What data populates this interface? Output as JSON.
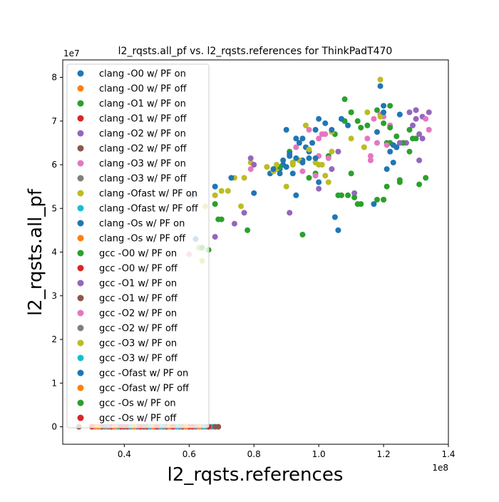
{
  "chart_data": {
    "type": "scatter",
    "title": "l2_rqsts.all_pf vs. l2_rqsts.references for ThinkPadT470",
    "xlabel": "l2_rqsts.references",
    "ylabel": "l2_rqsts.all_pf",
    "x_offset_label": "1e8",
    "y_offset_label": "1e7",
    "x_scale": 100000000,
    "y_scale": 10000000,
    "xlim": [
      0.21,
      1.4
    ],
    "ylim": [
      -0.4,
      8.4
    ],
    "xticks": [
      0.4,
      0.6,
      0.8,
      1.0,
      1.2,
      1.4
    ],
    "xtick_labels": [
      "0.4",
      "0.6",
      "0.8",
      "1.0",
      "1.2",
      "1.4"
    ],
    "yticks": [
      0,
      1,
      2,
      3,
      4,
      5,
      6,
      7,
      8
    ],
    "ytick_labels": [
      "0",
      "1",
      "2",
      "3",
      "4",
      "5",
      "6",
      "7",
      "8"
    ],
    "grid": false,
    "legend_position": "upper-left",
    "series": [
      {
        "name": "clang -O0 w/ PF on",
        "color": "#1f77b4",
        "points": [
          [
            0.9,
            5.95
          ],
          [
            0.92,
            6.05
          ],
          [
            0.86,
            5.85
          ],
          [
            0.88,
            5.9
          ],
          [
            0.95,
            6.1
          ],
          [
            0.93,
            6.6
          ],
          [
            0.9,
            6.8
          ],
          [
            0.97,
            6.3
          ],
          [
            0.99,
            6.8
          ],
          [
            1.0,
            7.05
          ],
          [
            0.85,
            5.8
          ],
          [
            0.91,
            6.2
          ],
          [
            0.94,
            6.5
          ],
          [
            0.89,
            6.0
          ],
          [
            0.87,
            5.95
          ],
          [
            0.96,
            6.4
          ]
        ]
      },
      {
        "name": "clang -O0 w/ PF off",
        "color": "#ff7f0e",
        "points": [
          [
            0.33,
            0.0
          ],
          [
            0.36,
            0.0
          ],
          [
            0.4,
            0.0
          ],
          [
            0.45,
            0.0
          ],
          [
            0.5,
            0.0
          ],
          [
            0.55,
            0.0
          ],
          [
            0.6,
            0.0
          ],
          [
            0.65,
            0.0
          ]
        ]
      },
      {
        "name": "clang -O1 w/ PF on",
        "color": "#2ca02c",
        "points": [
          [
            1.05,
            6.7
          ],
          [
            1.08,
            7.0
          ],
          [
            1.1,
            7.2
          ],
          [
            1.15,
            6.9
          ],
          [
            1.18,
            7.25
          ],
          [
            1.12,
            5.1
          ],
          [
            1.2,
            5.2
          ],
          [
            1.22,
            6.5
          ],
          [
            1.25,
            5.6
          ],
          [
            1.28,
            6.8
          ],
          [
            0.95,
            4.4
          ],
          [
            1.06,
            5.3
          ]
        ]
      },
      {
        "name": "clang -O1 w/ PF off",
        "color": "#d62728",
        "points": [
          [
            0.32,
            0.0
          ],
          [
            0.38,
            0.0
          ],
          [
            0.44,
            0.0
          ],
          [
            0.49,
            0.0
          ],
          [
            0.53,
            0.0
          ],
          [
            0.58,
            0.0
          ],
          [
            0.62,
            0.0
          ]
        ]
      },
      {
        "name": "clang -O2 w/ PF on",
        "color": "#9467bd",
        "points": [
          [
            1.25,
            7.15
          ],
          [
            1.28,
            7.2
          ],
          [
            1.3,
            7.25
          ],
          [
            1.32,
            7.1
          ],
          [
            1.29,
            6.9
          ],
          [
            1.31,
            6.1
          ],
          [
            1.27,
            6.5
          ],
          [
            1.34,
            7.2
          ]
        ]
      },
      {
        "name": "clang -O2 w/ PF off",
        "color": "#8c564b",
        "points": [
          [
            0.26,
            0.0
          ],
          [
            0.35,
            0.0
          ],
          [
            0.47,
            0.0
          ],
          [
            0.57,
            0.0
          ],
          [
            0.66,
            0.0
          ],
          [
            0.69,
            0.0
          ]
        ]
      },
      {
        "name": "clang -O3 w/ PF on",
        "color": "#e377c2",
        "points": [
          [
            1.15,
            6.6
          ],
          [
            1.18,
            6.5
          ],
          [
            1.2,
            7.1
          ],
          [
            1.22,
            6.9
          ],
          [
            1.17,
            7.05
          ],
          [
            1.16,
            6.2
          ],
          [
            1.14,
            6.4
          ],
          [
            1.33,
            7.05
          ],
          [
            1.34,
            6.8
          ]
        ]
      },
      {
        "name": "clang -O3 w/ PF off",
        "color": "#7f7f7f",
        "points": [
          [
            0.34,
            0.0
          ],
          [
            0.42,
            0.0
          ],
          [
            0.51,
            0.0
          ],
          [
            0.59,
            0.0
          ],
          [
            0.64,
            0.0
          ]
        ]
      },
      {
        "name": "clang -Ofast w/ PF on",
        "color": "#bcbd22",
        "points": [
          [
            0.68,
            5.3
          ],
          [
            0.7,
            5.4
          ],
          [
            0.72,
            5.4
          ],
          [
            0.74,
            5.7
          ],
          [
            0.77,
            5.7
          ],
          [
            0.79,
            6.05
          ],
          [
            0.84,
            5.95
          ],
          [
            0.87,
            5.9
          ],
          [
            0.92,
            6.05
          ],
          [
            0.96,
            6.9
          ],
          [
            1.0,
            6.0
          ],
          [
            1.04,
            6.75
          ],
          [
            1.1,
            6.6
          ],
          [
            1.14,
            6.4
          ],
          [
            1.19,
            7.95
          ],
          [
            0.65,
            5.05
          ],
          [
            0.63,
            4.1
          ],
          [
            0.64,
            3.8
          ]
        ]
      },
      {
        "name": "clang -Ofast w/ PF off",
        "color": "#17becf",
        "points": [
          [
            0.37,
            0.0
          ],
          [
            0.43,
            0.0
          ],
          [
            0.48,
            0.0
          ],
          [
            0.54,
            0.0
          ],
          [
            0.61,
            0.0
          ],
          [
            0.67,
            0.0
          ]
        ]
      },
      {
        "name": "clang -Os w/ PF on",
        "color": "#1f77b4",
        "points": [
          [
            1.05,
            4.8
          ],
          [
            1.06,
            4.5
          ],
          [
            1.17,
            5.1
          ],
          [
            1.19,
            7.8
          ],
          [
            1.2,
            7.35
          ],
          [
            1.21,
            5.9
          ],
          [
            1.22,
            6.3
          ],
          [
            1.23,
            6.05
          ],
          [
            1.25,
            7.15
          ],
          [
            0.8,
            5.35
          ],
          [
            0.73,
            5.7
          ],
          [
            0.68,
            5.5
          ],
          [
            0.61,
            5.3
          ],
          [
            0.62,
            4.3
          ],
          [
            0.93,
            5.3
          ],
          [
            1.0,
            5.6
          ],
          [
            0.89,
            6.1
          ],
          [
            0.92,
            5.8
          ]
        ]
      },
      {
        "name": "clang -Os w/ PF off",
        "color": "#ff7f0e",
        "points": [
          [
            0.31,
            0.0
          ],
          [
            0.39,
            0.0
          ],
          [
            0.46,
            0.0
          ],
          [
            0.52,
            0.0
          ],
          [
            0.56,
            0.0
          ],
          [
            0.63,
            0.0
          ]
        ]
      },
      {
        "name": "gcc -O0 w/ PF on",
        "color": "#2ca02c",
        "points": [
          [
            0.68,
            5.1
          ],
          [
            0.69,
            4.75
          ],
          [
            0.7,
            4.75
          ],
          [
            0.78,
            4.5
          ],
          [
            0.88,
            5.95
          ],
          [
            0.91,
            6.3
          ],
          [
            0.97,
            5.7
          ],
          [
            0.99,
            5.8
          ],
          [
            1.03,
            6.2
          ],
          [
            1.08,
            7.5
          ],
          [
            1.1,
            5.8
          ],
          [
            1.12,
            7.0
          ],
          [
            1.18,
            5.2
          ],
          [
            1.21,
            6.5
          ],
          [
            1.26,
            6.5
          ],
          [
            1.3,
            6.6
          ],
          [
            1.33,
            5.7
          ],
          [
            1.2,
            5.2
          ],
          [
            1.22,
            7.35
          ],
          [
            1.24,
            6.4
          ],
          [
            0.64,
            4.1
          ],
          [
            0.66,
            4.05
          ]
        ]
      },
      {
        "name": "gcc -O0 w/ PF off",
        "color": "#d62728",
        "points": [
          [
            0.36,
            0.0
          ],
          [
            0.41,
            0.0
          ],
          [
            0.47,
            0.0
          ],
          [
            0.5,
            0.0
          ],
          [
            0.55,
            0.0
          ],
          [
            0.6,
            0.0
          ]
        ]
      },
      {
        "name": "gcc -O1 w/ PF on",
        "color": "#9467bd",
        "points": [
          [
            0.68,
            4.35
          ],
          [
            0.74,
            4.65
          ],
          [
            0.77,
            4.9
          ],
          [
            0.8,
            6.0
          ],
          [
            0.79,
            6.15
          ],
          [
            0.91,
            4.9
          ],
          [
            1.0,
            5.45
          ],
          [
            1.04,
            5.9
          ],
          [
            1.06,
            6.3
          ],
          [
            1.07,
            7.05
          ],
          [
            1.11,
            5.35
          ],
          [
            1.25,
            6.5
          ],
          [
            1.3,
            7.05
          ],
          [
            1.31,
            6.7
          ],
          [
            1.32,
            6.6
          ],
          [
            1.3,
            7.25
          ]
        ]
      },
      {
        "name": "gcc -O1 w/ PF off",
        "color": "#8c564b",
        "points": [
          [
            0.33,
            0.0
          ],
          [
            0.4,
            0.0
          ],
          [
            0.46,
            0.0
          ],
          [
            0.53,
            0.0
          ],
          [
            0.58,
            0.0
          ],
          [
            0.68,
            0.0
          ]
        ]
      },
      {
        "name": "gcc -O2 w/ PF on",
        "color": "#e377c2",
        "points": [
          [
            0.93,
            6.4
          ],
          [
            0.95,
            5.85
          ],
          [
            0.97,
            6.8
          ],
          [
            1.0,
            6.6
          ],
          [
            1.0,
            6.2
          ],
          [
            1.01,
            6.7
          ],
          [
            1.02,
            6.7
          ],
          [
            1.03,
            6.15
          ],
          [
            0.99,
            5.75
          ],
          [
            1.19,
            7.15
          ],
          [
            1.21,
            6.45
          ],
          [
            0.79,
            5.9
          ],
          [
            0.6,
            3.95
          ],
          [
            1.16,
            6.1
          ]
        ]
      },
      {
        "name": "gcc -O2 w/ PF off",
        "color": "#7f7f7f",
        "points": [
          [
            0.35,
            0.0
          ],
          [
            0.44,
            0.0
          ],
          [
            0.52,
            0.0
          ],
          [
            0.57,
            0.0
          ],
          [
            0.62,
            0.0
          ]
        ]
      },
      {
        "name": "gcc -O3 w/ PF on",
        "color": "#bcbd22",
        "points": [
          [
            0.84,
            5.95
          ],
          [
            0.86,
            5.85
          ],
          [
            0.87,
            6.0
          ],
          [
            0.9,
            5.5
          ],
          [
            0.92,
            6.0
          ],
          [
            0.94,
            6.1
          ],
          [
            0.97,
            6.35
          ],
          [
            0.99,
            6.05
          ],
          [
            1.01,
            6.0
          ],
          [
            1.02,
            5.75
          ],
          [
            1.03,
            5.6
          ],
          [
            1.04,
            6.3
          ],
          [
            1.15,
            7.2
          ],
          [
            1.19,
            7.1
          ],
          [
            0.76,
            5.05
          ]
        ]
      },
      {
        "name": "gcc -O3 w/ PF off",
        "color": "#17becf",
        "points": [
          [
            0.38,
            0.0
          ],
          [
            0.42,
            0.0
          ],
          [
            0.48,
            0.0
          ],
          [
            0.51,
            0.0
          ],
          [
            0.56,
            0.0
          ],
          [
            0.65,
            0.0
          ]
        ]
      },
      {
        "name": "gcc -Ofast w/ PF on",
        "color": "#1f77b4",
        "points": [
          [
            0.86,
            5.9
          ],
          [
            0.88,
            5.8
          ],
          [
            0.9,
            5.95
          ],
          [
            0.91,
            6.25
          ],
          [
            0.93,
            6.15
          ],
          [
            0.95,
            6.05
          ],
          [
            0.98,
            6.5
          ],
          [
            1.02,
            6.95
          ],
          [
            1.04,
            6.8
          ],
          [
            1.07,
            7.05
          ],
          [
            1.09,
            6.9
          ],
          [
            1.18,
            6.75
          ],
          [
            1.2,
            7.2
          ],
          [
            1.23,
            6.45
          ],
          [
            1.24,
            6.4
          ],
          [
            0.95,
            6.6
          ],
          [
            0.97,
            6.15
          ],
          [
            0.99,
            6.15
          ]
        ]
      },
      {
        "name": "gcc -Ofast w/ PF off",
        "color": "#ff7f0e",
        "points": [
          [
            0.32,
            0.0
          ],
          [
            0.37,
            0.0
          ],
          [
            0.43,
            0.0
          ],
          [
            0.49,
            0.0
          ],
          [
            0.54,
            0.0
          ],
          [
            0.59,
            0.0
          ]
        ]
      },
      {
        "name": "gcc -Os w/ PF on",
        "color": "#2ca02c",
        "points": [
          [
            1.07,
            5.3
          ],
          [
            1.09,
            5.3
          ],
          [
            1.13,
            5.1
          ],
          [
            1.2,
            6.95
          ],
          [
            1.22,
            6.85
          ],
          [
            1.24,
            6.65
          ],
          [
            1.25,
            5.65
          ],
          [
            1.21,
            5.5
          ],
          [
            1.28,
            6.3
          ],
          [
            1.29,
            6.6
          ],
          [
            1.31,
            5.55
          ],
          [
            1.1,
            7.2
          ],
          [
            1.11,
            5.25
          ],
          [
            1.13,
            6.85
          ]
        ]
      },
      {
        "name": "gcc -Os w/ PF off",
        "color": "#d62728",
        "points": [
          [
            0.3,
            0.0
          ],
          [
            0.39,
            0.0
          ],
          [
            0.45,
            0.0
          ],
          [
            0.5,
            0.0
          ],
          [
            0.55,
            0.0
          ],
          [
            0.61,
            0.0
          ],
          [
            0.66,
            0.0
          ]
        ]
      }
    ]
  }
}
